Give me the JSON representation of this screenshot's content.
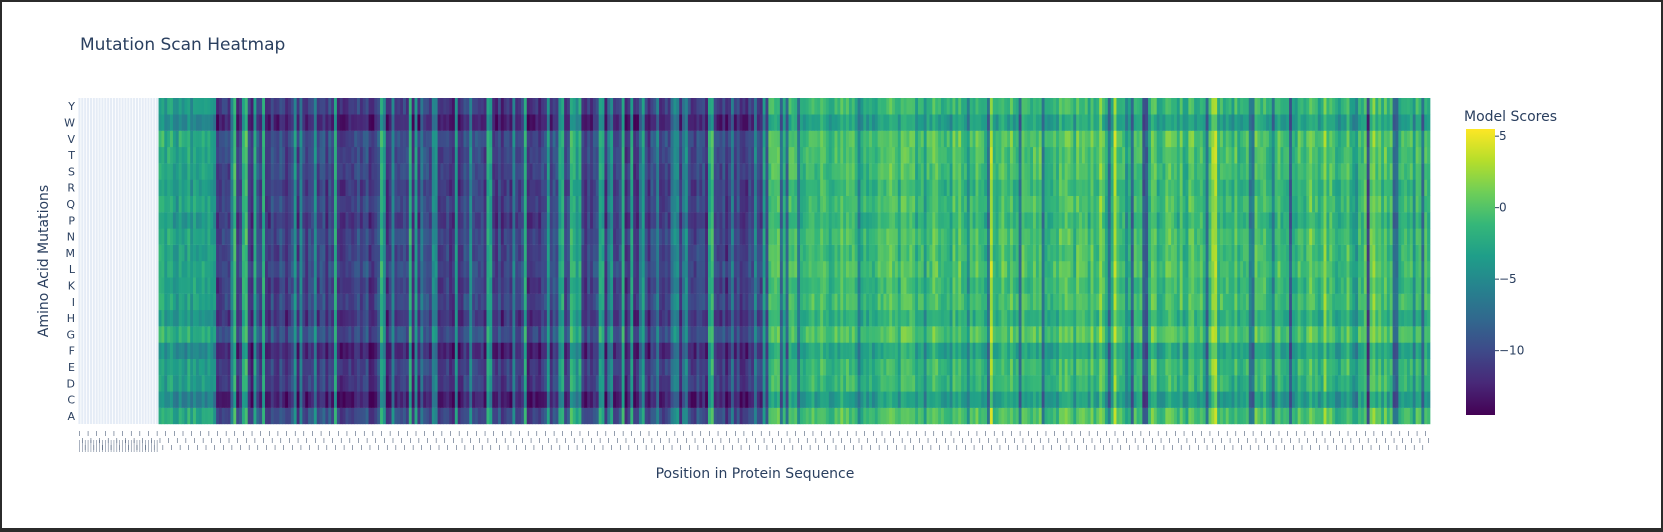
{
  "chart_data": {
    "type": "heatmap",
    "title": "Mutation Scan Heatmap",
    "xlabel": "Position in Protein Sequence",
    "ylabel": "Amino Acid Mutations",
    "y_categories": [
      "A",
      "C",
      "D",
      "E",
      "F",
      "G",
      "H",
      "I",
      "K",
      "L",
      "M",
      "N",
      "P",
      "Q",
      "R",
      "S",
      "T",
      "V",
      "W",
      "Y"
    ],
    "num_positions": 470,
    "empty_leading_positions": 28,
    "colorscale": "Viridis",
    "colorscale_stops": [
      "#440154",
      "#482878",
      "#3e4989",
      "#31688e",
      "#26828e",
      "#1f9e89",
      "#35b779",
      "#6ece58",
      "#b5de2b",
      "#fde725"
    ],
    "zrange": [
      -14.5,
      5.5
    ],
    "colorbar": {
      "title": "Model Scores",
      "ticks": [
        5,
        0,
        -5,
        -10
      ],
      "tick_labels": [
        "5",
        "0",
        "−5",
        "−10"
      ]
    },
    "region_profile": [
      {
        "from": 28,
        "to": 48,
        "level": -3.0
      },
      {
        "from": 48,
        "to": 240,
        "level": -10.5
      },
      {
        "from": 240,
        "to": 470,
        "level": -1.0
      }
    ],
    "row_offsets": {
      "A": 0.5,
      "C": -2.5,
      "D": -0.5,
      "E": -0.3,
      "F": -1.8,
      "G": 0.8,
      "H": -1.0,
      "I": 0.2,
      "K": -0.2,
      "L": 0.4,
      "M": 0.0,
      "N": 0.3,
      "P": -0.6,
      "Q": 0.1,
      "R": -0.4,
      "S": 0.2,
      "T": 0.3,
      "V": 0.6,
      "W": -2.2,
      "Y": -0.5
    },
    "xtick_label_rows": 3,
    "grid": true,
    "legend": "colorbar-right"
  }
}
